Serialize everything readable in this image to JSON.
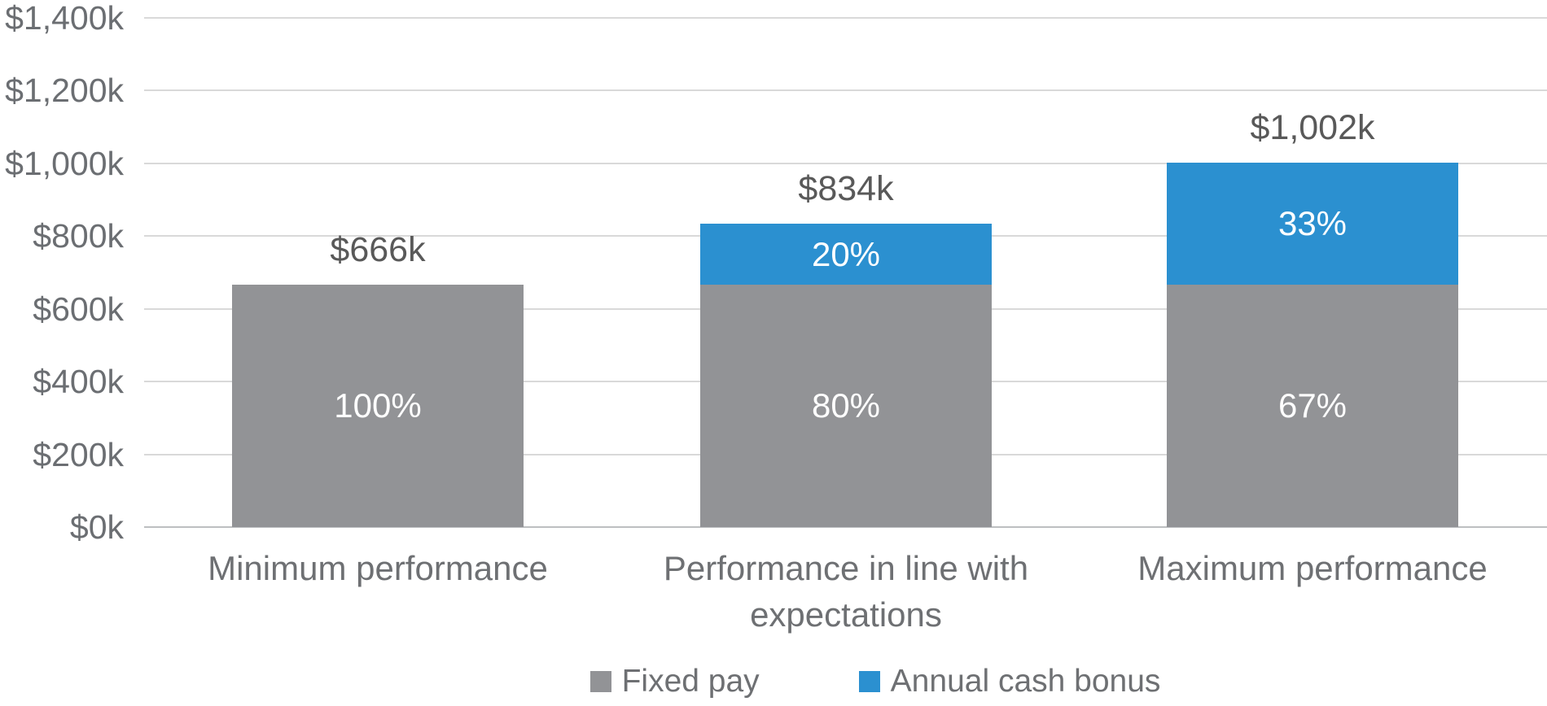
{
  "chart_data": {
    "type": "bar",
    "variant": "stacked-column",
    "title": "",
    "xlabel": "",
    "ylabel": "",
    "categories": [
      "Minimum performance",
      "Performance in line with expectations",
      "Maximum performance"
    ],
    "series": [
      {
        "name": "Fixed pay",
        "color": "#929396",
        "values": [
          666,
          666,
          666
        ]
      },
      {
        "name": "Annual cash bonus",
        "color": "#2b90d0",
        "values": [
          0,
          168,
          336
        ]
      }
    ],
    "totals": [
      666,
      834,
      1002
    ],
    "total_labels": [
      "$666k",
      "$834k",
      "$1,002k"
    ],
    "segment_labels": [
      [
        "100%",
        ""
      ],
      [
        "80%",
        "20%"
      ],
      [
        "67%",
        "33%"
      ]
    ],
    "y_ticks": [
      {
        "value": 0,
        "label": "$0k"
      },
      {
        "value": 200,
        "label": "$200k"
      },
      {
        "value": 400,
        "label": "$400k"
      },
      {
        "value": 600,
        "label": "$600k"
      },
      {
        "value": 800,
        "label": "$800k"
      },
      {
        "value": 1000,
        "label": "$1,000k"
      },
      {
        "value": 1200,
        "label": "$1,200k"
      },
      {
        "value": 1400,
        "label": "$1,400k"
      }
    ],
    "ylim": [
      0,
      1400
    ],
    "unit": "$k",
    "grid": true,
    "legend_position": "bottom",
    "legend": [
      "Fixed pay",
      "Annual cash bonus"
    ],
    "colors": {
      "fixed_pay": "#929396",
      "annual_cash_bonus": "#2b90d0",
      "gridline": "#d9d9d9",
      "axis_baseline": "#bdbfc1",
      "axis_text": "#6b6e72",
      "category_text": "#6e7073",
      "data_label_text": "#595959",
      "segment_label_text": "#ffffff",
      "background": "#ffffff"
    }
  }
}
